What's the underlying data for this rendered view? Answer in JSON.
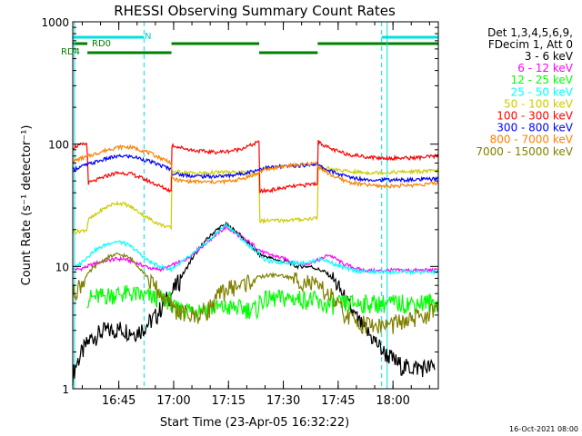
{
  "chart_data": {
    "type": "line",
    "title": "RHESSI Observing Summary Count Rates",
    "xlabel": "Start Time (23-Apr-05 16:32:22)",
    "ylabel": "Count Rate (s⁻¹ detector⁻¹)",
    "yscale": "log",
    "ylim": [
      1,
      1000
    ],
    "xlim_minutes": [
      0,
      100
    ],
    "x_tick_labels": [
      "16:45",
      "17:00",
      "17:15",
      "17:30",
      "17:45",
      "18:00"
    ],
    "x_tick_minutes": [
      12.6,
      27.6,
      42.6,
      57.6,
      72.6,
      87.6
    ],
    "y_tick_labels": [
      "1",
      "10",
      "100",
      "1000"
    ],
    "y_tick_values": [
      1,
      10,
      100,
      1000
    ],
    "legend_position": "right",
    "legend_header": [
      "Det 1,3,4,5,6,9,",
      "FDecim 1, Att 0"
    ],
    "timestamp": "16-Oct-2021 08:00",
    "flag_labels": {
      "night": "N",
      "rd0": "RD0",
      "rd4": "RD4"
    },
    "night_intervals": [
      [
        0,
        19.5
      ],
      [
        84.5,
        100
      ]
    ],
    "rd0_intervals": [
      [
        0,
        4
      ],
      [
        27,
        51
      ],
      [
        67,
        100
      ]
    ],
    "rd4_intervals": [
      [
        4,
        27
      ],
      [
        51,
        67
      ]
    ],
    "boundaries": [
      4,
      27,
      51,
      67
    ],
    "series": [
      {
        "name": "3 - 6 keV",
        "color": "#000000",
        "x": [
          0,
          1,
          3,
          5,
          7,
          9,
          11,
          13,
          15,
          17,
          19,
          21,
          23,
          25,
          27,
          29,
          31,
          33,
          35,
          37,
          39,
          41,
          42,
          43,
          45,
          47,
          49,
          51,
          53,
          55,
          57,
          59,
          61,
          63,
          65,
          67,
          69,
          71,
          73,
          75,
          77,
          79,
          81,
          83,
          85,
          87,
          89,
          91,
          93,
          95,
          97,
          99
        ],
        "y": [
          1.3,
          1.6,
          2.1,
          2.6,
          2.8,
          3.0,
          3.0,
          3.1,
          3.0,
          2.9,
          3.1,
          3.5,
          4.0,
          5.0,
          6.0,
          7.5,
          9.5,
          12,
          14.5,
          17,
          19.5,
          21.5,
          22,
          21,
          19,
          16.5,
          14.5,
          12.5,
          12,
          11.5,
          11,
          11,
          10,
          10,
          10,
          9.5,
          9,
          8,
          6.5,
          5,
          4,
          3.3,
          2.8,
          2.4,
          2.0,
          1.8,
          1.6,
          1.5,
          1.5,
          1.5,
          1.5,
          1.5
        ]
      },
      {
        "name": "6 - 12 keV",
        "color": "#ff00ff",
        "x": [
          0,
          2,
          4,
          6,
          8,
          10,
          12,
          14,
          16,
          18,
          20,
          22,
          24,
          26,
          28,
          30,
          32,
          34,
          36,
          38,
          40,
          42,
          44,
          46,
          48,
          50,
          52,
          54,
          56,
          58,
          60,
          62,
          64,
          66,
          68,
          70,
          72,
          74,
          76,
          78,
          80,
          82,
          84,
          86,
          88,
          90,
          92,
          94,
          96,
          98,
          100
        ],
        "y": [
          9.5,
          9.5,
          10,
          10.5,
          11,
          11.3,
          11.5,
          11.5,
          11,
          10.5,
          10,
          9.5,
          9.5,
          9.8,
          10.5,
          11,
          12,
          13.5,
          15,
          17,
          19,
          21,
          19,
          17.5,
          16,
          14.5,
          13,
          12.5,
          12,
          11.5,
          11,
          10.5,
          10.5,
          11,
          11.5,
          12.5,
          11.5,
          10.5,
          10,
          9.5,
          9.3,
          9.2,
          9.2,
          9.3,
          9.3,
          9.3,
          9.3,
          9.3,
          9.3,
          9.3,
          9.3
        ]
      },
      {
        "name": "12 - 25 keV",
        "color": "#00ff00",
        "x": [
          4,
          8,
          12,
          16,
          20,
          24,
          27,
          27.1,
          32,
          36,
          40,
          44,
          48,
          51,
          51.1,
          56,
          60,
          64,
          67,
          67.1,
          72,
          76,
          80,
          84,
          88,
          92,
          96,
          100
        ],
        "y": [
          5.5,
          5.7,
          6.0,
          6.0,
          5.7,
          5.5,
          5.3,
          4.5,
          4.5,
          4.6,
          4.6,
          4.6,
          4.5,
          4.5,
          5.3,
          5.5,
          5.5,
          5.4,
          5.3,
          4.8,
          4.9,
          5.0,
          5.0,
          5.0,
          5.0,
          5.0,
          5.1,
          5.1
        ]
      },
      {
        "name": "25 - 50 keV",
        "color": "#00ffff",
        "x": [
          0,
          2,
          4,
          6,
          8,
          10,
          12,
          14,
          16,
          18,
          20,
          22,
          24,
          26,
          27,
          28,
          30,
          32,
          34,
          36,
          38,
          40,
          42,
          44,
          46,
          48,
          50,
          51,
          52,
          54,
          56,
          58,
          60,
          62,
          64,
          66,
          67,
          68,
          70,
          72,
          74,
          76,
          78,
          80,
          82,
          84,
          86,
          88,
          90,
          92,
          94,
          96,
          98,
          100
        ],
        "y": [
          9.5,
          10.5,
          12,
          13.5,
          14.5,
          15.5,
          16,
          15.5,
          14.5,
          13,
          11.5,
          10.5,
          10,
          9.6,
          9.5,
          10,
          11,
          12,
          13.5,
          15,
          17,
          19.5,
          22,
          19.5,
          17,
          15,
          13.5,
          13,
          11.5,
          11,
          10.8,
          10.8,
          10.7,
          10.7,
          10.8,
          11,
          11.3,
          11.5,
          11,
          10.3,
          9.8,
          9.4,
          9.2,
          9.1,
          9.0,
          9.0,
          9.0,
          9.0,
          9.0,
          9.0,
          9.0,
          9.0,
          9.0,
          9.0
        ]
      },
      {
        "name": "50 - 100 keV",
        "color": "#cccc00",
        "x": [
          0,
          2,
          4,
          4.1,
          6,
          8,
          10,
          12,
          14,
          16,
          18,
          20,
          22,
          24,
          26,
          27,
          27.1,
          30,
          33,
          36,
          39,
          42,
          45,
          48,
          51,
          51.1,
          54,
          57,
          60,
          63,
          67,
          67.1,
          70,
          73,
          76,
          80,
          84,
          88,
          92,
          96,
          100
        ],
        "y": [
          19,
          19.5,
          20,
          24,
          26,
          29,
          31.5,
          33,
          32.5,
          30.5,
          28,
          25.5,
          23.5,
          22,
          21,
          20.5,
          60,
          59,
          58,
          58,
          58.5,
          59,
          58.5,
          58,
          57,
          23.5,
          23.7,
          23.8,
          24,
          24.3,
          25,
          64,
          63,
          61,
          59.5,
          58.5,
          58.5,
          59,
          59.5,
          60,
          60.5
        ]
      },
      {
        "name": "100 - 300 keV",
        "color": "#ff0000",
        "x": [
          0,
          2,
          4,
          4.1,
          6,
          8,
          10,
          12,
          14,
          16,
          18,
          20,
          22,
          24,
          26,
          27,
          27.1,
          30,
          33,
          36,
          39,
          42,
          45,
          48,
          51,
          51.1,
          54,
          57,
          60,
          63,
          67,
          67.1,
          70,
          73,
          76,
          80,
          84,
          88,
          92,
          96,
          100
        ],
        "y": [
          94,
          98,
          101,
          48,
          50,
          53,
          56,
          58,
          58,
          57,
          54,
          51,
          48,
          45,
          42.5,
          41,
          98,
          93,
          89,
          87,
          86,
          87,
          90,
          96,
          104,
          41,
          42,
          43.5,
          45,
          46,
          48,
          105,
          93,
          86,
          82,
          79,
          77,
          77,
          77,
          78,
          80
        ]
      },
      {
        "name": "300 - 800 keV",
        "color": "#0000ff",
        "x": [
          0,
          2,
          4,
          6,
          8,
          10,
          12,
          14,
          16,
          18,
          20,
          22,
          24,
          26,
          27,
          27.1,
          30,
          33,
          36,
          39,
          42,
          45,
          48,
          51,
          51.1,
          54,
          57,
          60,
          63,
          67,
          67.1,
          70,
          73,
          76,
          80,
          84,
          88,
          92,
          96,
          100
        ],
        "y": [
          62,
          65,
          68,
          71,
          74,
          77,
          79,
          80,
          79,
          77,
          74,
          70.5,
          67,
          64,
          62,
          58,
          56,
          55,
          54.5,
          54.5,
          55,
          56.5,
          59,
          62,
          63,
          64.5,
          65.5,
          66,
          67,
          69,
          67,
          61,
          56.5,
          53.5,
          51.5,
          51,
          51,
          51,
          51.5,
          52
        ]
      },
      {
        "name": "800 - 7000 keV",
        "color": "#ff8000",
        "x": [
          0,
          2,
          4,
          6,
          8,
          10,
          12,
          14,
          16,
          18,
          20,
          22,
          24,
          26,
          27,
          27.1,
          30,
          33,
          36,
          39,
          42,
          45,
          48,
          51,
          51.1,
          54,
          57,
          60,
          63,
          67,
          67.1,
          70,
          73,
          76,
          80,
          84,
          88,
          92,
          96,
          100
        ],
        "y": [
          72,
          76,
          79,
          83,
          87,
          91,
          94,
          95,
          94,
          91,
          87,
          82,
          77,
          73,
          70,
          52,
          50,
          49.5,
          49,
          49,
          49.5,
          51,
          54,
          58,
          60,
          63,
          65.5,
          67,
          68,
          70,
          66,
          57,
          52,
          48.5,
          46.5,
          45.5,
          45.5,
          46,
          47,
          48
        ]
      },
      {
        "name": "7000 - 15000 keV",
        "color": "#808000",
        "x": [
          0,
          2,
          4,
          6,
          8,
          10,
          12,
          14,
          16,
          18,
          20,
          22,
          24,
          26,
          28,
          30,
          32,
          34,
          36,
          38,
          40,
          42,
          44,
          46,
          48,
          50,
          52,
          54,
          56,
          58,
          60,
          62,
          64,
          66,
          68,
          70,
          72,
          74,
          76,
          78,
          80,
          82,
          84,
          86,
          88,
          90,
          92,
          94,
          96,
          98,
          100
        ],
        "y": [
          6.0,
          7.0,
          8.5,
          10.0,
          11.0,
          12.0,
          12.5,
          12.3,
          11.5,
          10.0,
          8.5,
          7.0,
          6.0,
          5.0,
          4.5,
          4.2,
          4.0,
          4.0,
          4.2,
          4.8,
          5.8,
          6.5,
          6.8,
          7.0,
          7.5,
          8.0,
          8.3,
          8.5,
          8.5,
          8.3,
          8.0,
          7.8,
          7.5,
          7.0,
          6.5,
          6.0,
          5.0,
          4.2,
          3.7,
          3.5,
          3.4,
          3.3,
          3.3,
          3.3,
          3.4,
          3.5,
          3.6,
          3.8,
          4.0,
          4.2,
          4.5
        ]
      }
    ]
  }
}
